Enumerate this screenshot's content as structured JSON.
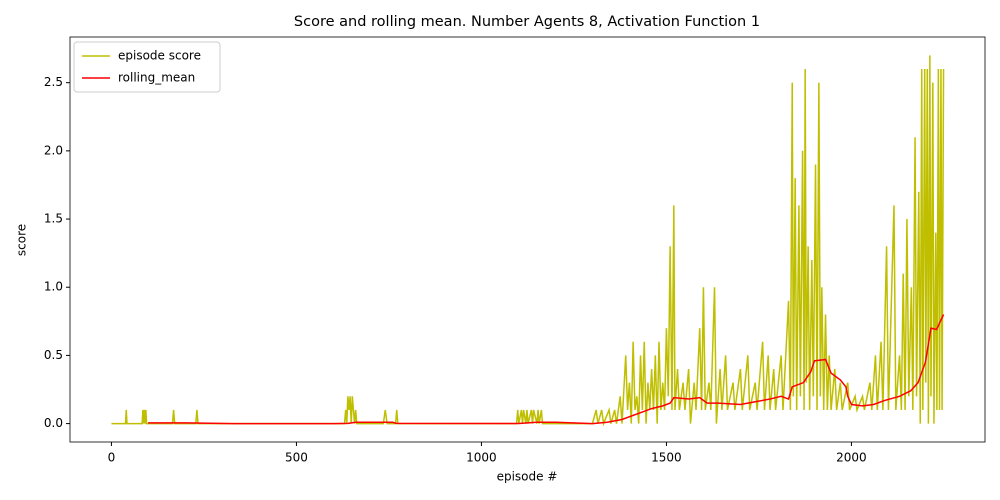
{
  "chart_data": {
    "type": "line",
    "title": "Score and rolling mean. Number Agents 8, Activation Function 1",
    "xlabel": "episode #",
    "ylabel": "score",
    "xlim": [
      -112,
      2361
    ],
    "ylim": [
      -0.135,
      2.835
    ],
    "xticks": [
      0,
      500,
      1000,
      1500,
      2000
    ],
    "yticks": [
      {
        "value": 0,
        "label": "0.0"
      },
      0.5,
      {
        "value": 1,
        "label": "1.0"
      },
      1.5,
      {
        "value": 2,
        "label": "2.0"
      },
      2.5
    ],
    "legend": "upper left",
    "series": [
      {
        "name": "episode score",
        "color": "#bfbf00",
        "x": [
          0,
          38,
          40,
          42,
          83,
          85,
          87,
          89,
          91,
          93,
          95,
          97,
          165,
          168,
          171,
          228,
          231,
          234,
          630,
          633,
          636,
          639,
          642,
          645,
          648,
          651,
          654,
          657,
          660,
          663,
          735,
          740,
          745,
          768,
          771,
          774,
          1095,
          1098,
          1101,
          1108,
          1111,
          1114,
          1120,
          1123,
          1126,
          1135,
          1138,
          1141,
          1150,
          1153,
          1156,
          1162,
          1165,
          1168,
          1300,
          1310,
          1315,
          1325,
          1330,
          1345,
          1350,
          1360,
          1365,
          1375,
          1380,
          1390,
          1395,
          1400,
          1405,
          1410,
          1415,
          1420,
          1425,
          1430,
          1435,
          1440,
          1445,
          1450,
          1455,
          1460,
          1465,
          1470,
          1475,
          1480,
          1485,
          1490,
          1495,
          1500,
          1505,
          1510,
          1515,
          1520,
          1523,
          1530,
          1535,
          1545,
          1550,
          1560,
          1565,
          1575,
          1580,
          1590,
          1595,
          1600,
          1605,
          1615,
          1620,
          1630,
          1635,
          1645,
          1650,
          1660,
          1665,
          1680,
          1685,
          1700,
          1705,
          1720,
          1725,
          1740,
          1745,
          1760,
          1765,
          1775,
          1780,
          1790,
          1795,
          1810,
          1815,
          1830,
          1835,
          1840,
          1843,
          1848,
          1852,
          1858,
          1862,
          1868,
          1872,
          1875,
          1878,
          1883,
          1887,
          1893,
          1897,
          1903,
          1907,
          1912,
          1916,
          1920,
          1925,
          1930,
          1935,
          1940,
          1945,
          1955,
          1960,
          1970,
          1975,
          1990,
          1995,
          2010,
          2015,
          2030,
          2035,
          2050,
          2055,
          2065,
          2070,
          2080,
          2085,
          2095,
          2100,
          2115,
          2120,
          2130,
          2135,
          2140,
          2145,
          2150,
          2155,
          2162,
          2166,
          2172,
          2176,
          2182,
          2186,
          2190,
          2193,
          2198,
          2201,
          2205,
          2208,
          2212,
          2215,
          2220,
          2223,
          2228,
          2231,
          2235,
          2238,
          2242,
          2245,
          2249
        ],
        "values": [
          0,
          0,
          0.1,
          0,
          0,
          0.1,
          0,
          0.1,
          0,
          0.1,
          0,
          0,
          0,
          0.1,
          0,
          0,
          0.1,
          0,
          0,
          0.1,
          0,
          0.2,
          0.1,
          0.2,
          0,
          0.2,
          0.1,
          0,
          0.1,
          0,
          0,
          0.1,
          0,
          0,
          0.1,
          0,
          0,
          0.1,
          0,
          0.1,
          0,
          0.1,
          0,
          0.1,
          0,
          0.1,
          0,
          0.1,
          0,
          0.1,
          0,
          0.1,
          0,
          0,
          0,
          0.1,
          0,
          0.1,
          0,
          0.1,
          0,
          0.1,
          0,
          0.2,
          0,
          0.5,
          0.1,
          0.3,
          0,
          0.6,
          0.1,
          0.2,
          0,
          0.5,
          0.1,
          0.6,
          0,
          0.3,
          0.1,
          0.4,
          0.1,
          0.5,
          0,
          0.6,
          0.1,
          0.3,
          0.1,
          0.7,
          0.2,
          1.3,
          0.1,
          1.6,
          0.1,
          0.4,
          0.1,
          0.3,
          0.1,
          0.4,
          0,
          0.3,
          0.1,
          0.7,
          0.1,
          1.0,
          0.1,
          0.3,
          0.1,
          1.0,
          0,
          0.4,
          0.1,
          0.5,
          0.1,
          0.3,
          0.1,
          0.4,
          0.1,
          0.5,
          0.1,
          0.3,
          0.1,
          0.6,
          0.1,
          0.5,
          0.1,
          0.4,
          0.1,
          0.5,
          0.1,
          0.9,
          0.1,
          2.5,
          0.2,
          1.8,
          0.1,
          1.6,
          0.2,
          2.0,
          0.1,
          2.6,
          0.3,
          1.3,
          0.1,
          1.2,
          0.2,
          1.9,
          0.1,
          2.5,
          0.2,
          1.0,
          0.1,
          0.8,
          0.1,
          0.5,
          0.1,
          0.4,
          0.1,
          0.3,
          0.1,
          0.3,
          0.1,
          0.2,
          0.1,
          0.2,
          0.1,
          0.3,
          0.1,
          0.5,
          0.1,
          0.6,
          0.1,
          1.3,
          0.1,
          1.6,
          0.1,
          0.5,
          0.1,
          1.1,
          0.1,
          1.5,
          0.2,
          1.0,
          0.1,
          2.1,
          0.2,
          1.7,
          0,
          2.6,
          0.1,
          2.6,
          0.3,
          2.6,
          0,
          2.7,
          0.2,
          2.5,
          0,
          1.4,
          0.1,
          2.6,
          0.1,
          2.6,
          0.1,
          2.6
        ]
      },
      {
        "name": "rolling_mean",
        "color": "#ff0000",
        "x": [
          99,
          200,
          330,
          600,
          640,
          660,
          760,
          770,
          1100,
          1150,
          1200,
          1300,
          1340,
          1380,
          1420,
          1460,
          1490,
          1510,
          1520,
          1560,
          1590,
          1610,
          1640,
          1700,
          1740,
          1780,
          1810,
          1830,
          1840,
          1870,
          1890,
          1900,
          1930,
          1945,
          1970,
          1985,
          1990,
          2000,
          2030,
          2060,
          2090,
          2130,
          2160,
          2180,
          2200,
          2215,
          2230,
          2249
        ],
        "values": [
          0.005,
          0.005,
          0,
          0,
          0.002,
          0.01,
          0.01,
          0.002,
          0.001,
          0.01,
          0.01,
          0,
          0.01,
          0.03,
          0.07,
          0.11,
          0.13,
          0.15,
          0.19,
          0.18,
          0.19,
          0.15,
          0.15,
          0.14,
          0.16,
          0.18,
          0.2,
          0.18,
          0.27,
          0.3,
          0.38,
          0.46,
          0.47,
          0.37,
          0.32,
          0.27,
          0.2,
          0.14,
          0.13,
          0.14,
          0.17,
          0.2,
          0.24,
          0.3,
          0.45,
          0.7,
          0.69,
          0.8
        ]
      }
    ]
  }
}
